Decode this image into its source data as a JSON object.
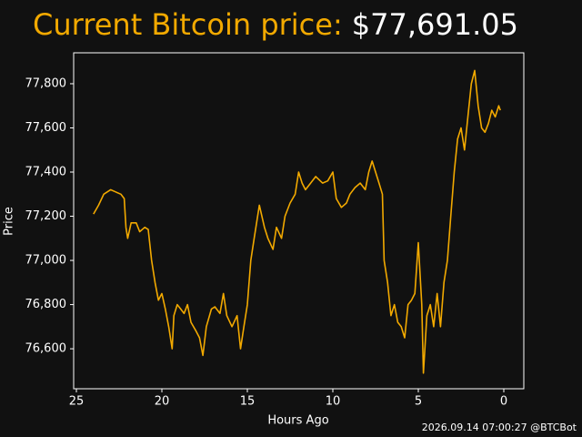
{
  "chart_data": {
    "type": "line",
    "title": "Current Bitcoin price:",
    "current_price": "$77,691.05",
    "footer": "2026.09.14 07:00:27 @BTCBot",
    "x_label": "Hours Ago",
    "y_label": "Price",
    "color": "#f2a900",
    "title_color": "#f2a900",
    "xlim": [
      25.16,
      -1.17
    ],
    "ylim": [
      76419,
      77940
    ],
    "xticks": [
      25,
      20,
      15,
      10,
      5,
      0
    ],
    "yticks": [
      {
        "value": 76600,
        "label": "76,600"
      },
      {
        "value": 76800,
        "label": "76,800"
      },
      {
        "value": 77000,
        "label": "77,000"
      },
      {
        "value": 77200,
        "label": "77,200"
      },
      {
        "value": 77400,
        "label": "77,400"
      },
      {
        "value": 77600,
        "label": "77,600"
      },
      {
        "value": 77800,
        "label": "77,800"
      }
    ],
    "x": [
      24.0,
      23.7,
      23.4,
      23.0,
      22.7,
      22.4,
      22.2,
      22.1,
      22.0,
      21.8,
      21.5,
      21.3,
      21.0,
      20.8,
      20.6,
      20.4,
      20.2,
      20.0,
      19.8,
      19.6,
      19.4,
      19.3,
      19.1,
      18.9,
      18.7,
      18.5,
      18.3,
      18.0,
      17.8,
      17.6,
      17.4,
      17.1,
      16.9,
      16.6,
      16.4,
      16.2,
      15.9,
      15.6,
      15.4,
      15.2,
      15.0,
      14.8,
      14.6,
      14.3,
      14.0,
      13.8,
      13.5,
      13.3,
      13.0,
      12.8,
      12.5,
      12.2,
      12.0,
      11.8,
      11.6,
      11.3,
      11.0,
      10.6,
      10.3,
      10.0,
      9.8,
      9.5,
      9.2,
      9.0,
      8.7,
      8.4,
      8.1,
      7.9,
      7.7,
      7.5,
      7.3,
      7.1,
      7.0,
      6.8,
      6.6,
      6.4,
      6.2,
      6.0,
      5.8,
      5.6,
      5.4,
      5.2,
      5.0,
      4.8,
      4.7,
      4.5,
      4.3,
      4.1,
      3.9,
      3.7,
      3.5,
      3.3,
      3.1,
      2.9,
      2.7,
      2.5,
      2.3,
      2.1,
      1.9,
      1.7,
      1.5,
      1.3,
      1.1,
      0.9,
      0.7,
      0.5,
      0.3,
      0.2
    ],
    "values": [
      77210,
      77250,
      77300,
      77320,
      77310,
      77300,
      77280,
      77150,
      77100,
      77170,
      77170,
      77130,
      77150,
      77140,
      77000,
      76900,
      76820,
      76850,
      76780,
      76700,
      76600,
      76750,
      76800,
      76780,
      76760,
      76800,
      76720,
      76680,
      76650,
      76570,
      76700,
      76780,
      76790,
      76760,
      76850,
      76750,
      76700,
      76750,
      76600,
      76700,
      76800,
      77000,
      77100,
      77250,
      77150,
      77100,
      77050,
      77150,
      77100,
      77200,
      77260,
      77300,
      77400,
      77350,
      77320,
      77350,
      77380,
      77350,
      77360,
      77400,
      77280,
      77240,
      77260,
      77300,
      77330,
      77350,
      77320,
      77400,
      77450,
      77400,
      77350,
      77300,
      77000,
      76900,
      76750,
      76800,
      76720,
      76700,
      76650,
      76800,
      76820,
      76850,
      77080,
      76800,
      76490,
      76750,
      76800,
      76700,
      76850,
      76700,
      76900,
      77000,
      77200,
      77400,
      77550,
      77600,
      77500,
      77650,
      77800,
      77860,
      77700,
      77600,
      77580,
      77620,
      77680,
      77650,
      77700,
      77680
    ]
  }
}
